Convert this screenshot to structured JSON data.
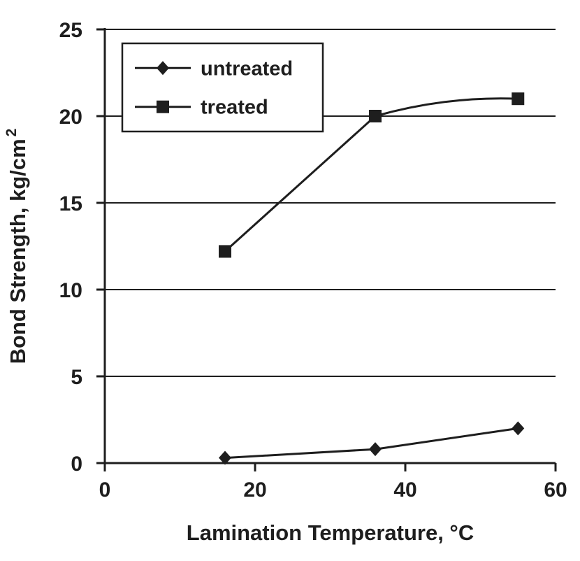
{
  "chart_data": {
    "type": "line",
    "title": "",
    "xlabel": "Lamination Temperature, °C",
    "ylabel": "Bond Strength, kg/cm",
    "ylabel_superscript": "2",
    "xlim": [
      0,
      60
    ],
    "ylim": [
      0,
      25
    ],
    "xticks": [
      0,
      20,
      40,
      60
    ],
    "yticks": [
      0,
      5,
      10,
      15,
      20,
      25
    ],
    "grid": "horizontal",
    "legend": {
      "position": "top-left",
      "entries": [
        "untreated",
        "treated"
      ]
    },
    "series": [
      {
        "name": "untreated",
        "marker": "diamond",
        "smooth": false,
        "x": [
          16,
          36,
          55
        ],
        "y": [
          0.3,
          0.8,
          2.0
        ]
      },
      {
        "name": "treated",
        "marker": "square",
        "smooth": true,
        "x": [
          16,
          36,
          55
        ],
        "y": [
          12.2,
          20.0,
          21.0
        ]
      }
    ],
    "ink_color": "#1e1e1e",
    "background": "#ffffff"
  }
}
